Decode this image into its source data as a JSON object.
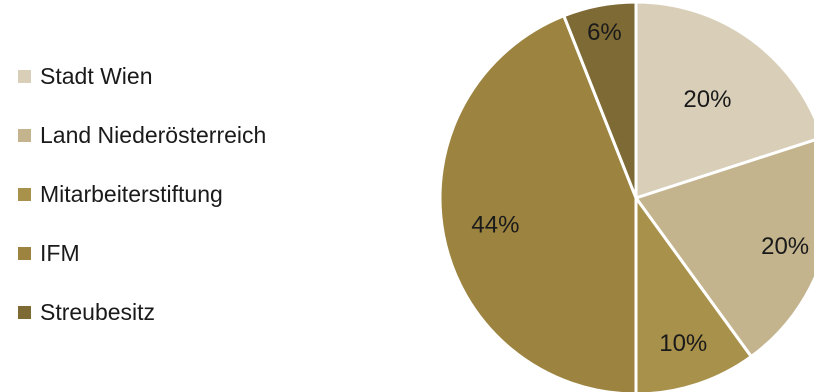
{
  "chart_data": {
    "type": "pie",
    "title": "",
    "legend_position": "left",
    "start_angle_deg": 0,
    "direction": "clockwise",
    "categories": [
      "Stadt Wien",
      "Land Niederösterreich",
      "Mitarbeiterstiftung",
      "IFM",
      "Streubesitz"
    ],
    "values": [
      20,
      20,
      10,
      44,
      6
    ],
    "labels": [
      "20%",
      "20%",
      "10%",
      "44%",
      "6%"
    ],
    "colors": [
      "#d9cfb9",
      "#c4b48e",
      "#a8914a",
      "#9c8440",
      "#7e6a35"
    ],
    "slice_border_color": "#ffffff"
  }
}
